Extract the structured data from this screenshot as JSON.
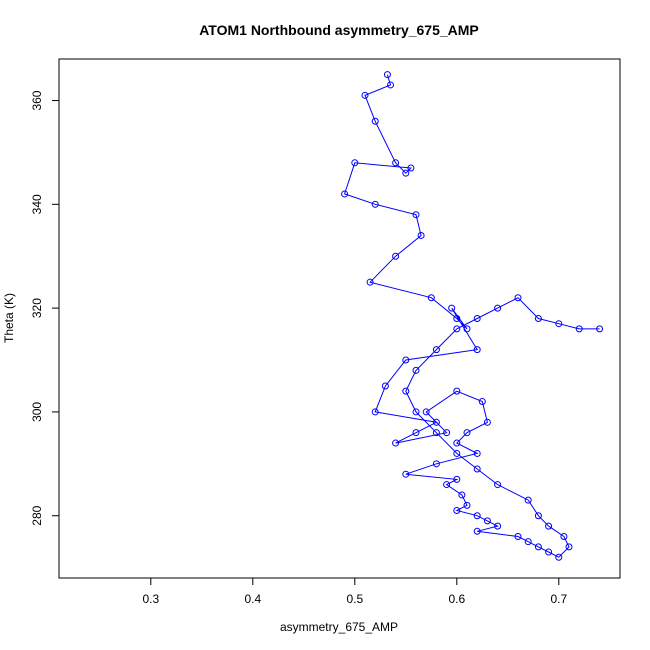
{
  "chart_data": {
    "type": "line",
    "title": "ATOM1 Northbound asymmetry_675_AMP",
    "xlabel": "asymmetry_675_AMP",
    "ylabel": "Theta (K)",
    "xlim": [
      0.21,
      0.76
    ],
    "ylim": [
      268,
      368
    ],
    "x_ticks": [
      0.3,
      0.4,
      0.5,
      0.6,
      0.7
    ],
    "x_tick_labels": [
      "0.3",
      "0.4",
      "0.5",
      "0.6",
      "0.7"
    ],
    "y_ticks": [
      280,
      300,
      320,
      340,
      360
    ],
    "y_tick_labels": [
      "280",
      "300",
      "320",
      "340",
      "360"
    ],
    "grid": false,
    "marker": "open-circle",
    "color": "#0000ff",
    "series": [
      {
        "x": [
          0.532,
          0.535,
          0.51,
          0.52,
          0.54,
          0.55,
          0.555,
          0.5,
          0.49,
          0.52,
          0.56,
          0.565,
          0.54,
          0.515,
          0.575,
          0.6,
          0.61,
          0.595,
          0.62,
          0.55,
          0.53,
          0.52,
          0.58,
          0.56,
          0.54,
          0.59,
          0.57,
          0.6,
          0.625,
          0.63,
          0.61,
          0.6,
          0.62,
          0.58,
          0.55,
          0.6,
          0.59,
          0.605,
          0.61,
          0.6,
          0.62,
          0.63,
          0.64,
          0.62,
          0.66,
          0.67,
          0.68,
          0.69,
          0.7,
          0.71,
          0.705,
          0.69,
          0.68,
          0.67,
          0.64,
          0.62,
          0.6,
          0.58,
          0.56,
          0.55,
          0.56,
          0.58,
          0.6,
          0.62,
          0.64,
          0.66,
          0.68,
          0.7,
          0.72,
          0.74
        ],
        "y": [
          365,
          363,
          361,
          356,
          348,
          346,
          347,
          348,
          342,
          340,
          338,
          334,
          330,
          325,
          322,
          318,
          316,
          320,
          312,
          310,
          305,
          300,
          298,
          296,
          294,
          296,
          300,
          304,
          302,
          298,
          296,
          294,
          292,
          290,
          288,
          287,
          286,
          284,
          282,
          281,
          280,
          279,
          278,
          277,
          276,
          275,
          274,
          273,
          272,
          274,
          276,
          278,
          280,
          283,
          286,
          289,
          292,
          296,
          300,
          304,
          308,
          312,
          316,
          318,
          320,
          322,
          318,
          317,
          316,
          316
        ]
      }
    ]
  }
}
